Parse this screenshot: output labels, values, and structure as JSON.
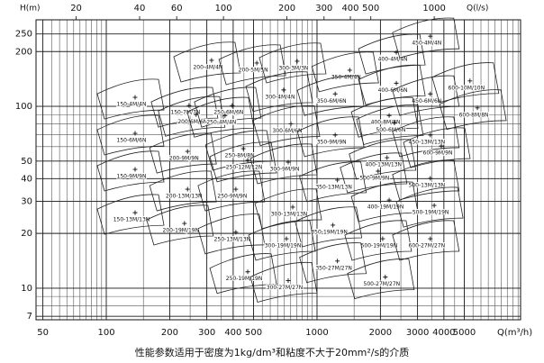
{
  "chart_data": {
    "type": "scatter",
    "caption": "性能参数适用于密度为1kg/dm³和粘度不大于20mm²/s的介质",
    "y_label": "H(m)",
    "x_label": "Q(m³/h)",
    "x2_label": "Q(l/s)",
    "log_x": true,
    "log_y": true,
    "grid": true,
    "color": "#111111",
    "xlim": [
      46.4,
      9250
    ],
    "ylim": [
      6.7,
      299
    ],
    "x2lim": [
      12.9,
      2569
    ],
    "xticks": [
      50,
      100,
      200,
      300,
      400,
      500,
      1000,
      2000,
      3000,
      4000,
      5000
    ],
    "x2ticks": [
      20,
      40,
      60,
      100,
      200,
      300,
      400,
      500,
      1000
    ],
    "yticks": [
      7,
      10,
      20,
      30,
      40,
      50,
      100,
      200,
      250
    ],
    "labels": [
      "150-4M/4N",
      "200-4M/4N",
      "200-5M/5N",
      "300-3M/3N",
      "350-4M/4N",
      "400-4M/4N",
      "450-4M/4N",
      "300-4M/4N",
      "350-6M/6N",
      "400-6M/6N",
      "450-6M/6N",
      "600-10M/10N",
      "600-8M/8N",
      "150-7M/7N",
      "200-6M/6N",
      "250-6M/6N",
      "250-4M/4N",
      "300-6M/6N",
      "400-8M/8N",
      "500-6M/6N",
      "150-6M/6N",
      "350-9M/9N",
      "450-13M/13N",
      "600-9M/9N",
      "200-9M/9N",
      "250-8M/8N",
      "250-12M/12N",
      "300-9M/9N",
      "400-13M/13N",
      "500-9M/9N",
      "150-9M/9N",
      "350-13M/13N",
      "500-13M/13N",
      "200-13M/13N",
      "250-9M/9N",
      "300-13M/13N",
      "150-13M/13N",
      "400-19M/19N",
      "500-19M/19N",
      "200-19M/19N",
      "350-19M/19N",
      "250-13M/13N",
      "300-19M/19N",
      "500-19M/19N",
      "600-27M/27N",
      "350-27M/27N",
      "250-19M/19N",
      "300-27M/27N",
      "500-27M/27N"
    ],
    "x": [
      137,
      316,
      518,
      805,
      1430,
      2380,
      3450,
      695,
      1220,
      2380,
      3450,
      5320,
      5770,
      247,
      267,
      396,
      366,
      752,
      2200,
      2330,
      137,
      1220,
      3450,
      3890,
      243,
      447,
      469,
      730,
      2150,
      1950,
      137,
      1250,
      3450,
      243,
      412,
      767,
      137,
      2200,
      3600,
      235,
      1190,
      412,
      716,
      2050,
      3450,
      1250,
      469,
      730,
      2110
    ],
    "values": [
      112,
      179,
      173,
      177,
      158,
      198,
      243,
      123,
      117,
      134,
      117,
      138,
      98,
      101,
      90,
      101,
      89,
      80,
      89,
      81,
      71,
      69.5,
      69.5,
      60.5,
      56.5,
      58.5,
      50.5,
      49.3,
      52.2,
      44,
      45,
      39.3,
      40.2,
      35,
      35,
      27.9,
      26,
      30.5,
      28.5,
      22.7,
      22.2,
      20.3,
      18.7,
      18.7,
      18.7,
      14.1,
      12.3,
      11,
      11.5
    ]
  }
}
